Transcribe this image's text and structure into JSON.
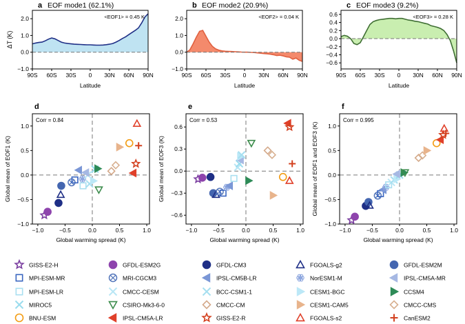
{
  "colors": {
    "eof1_fill": "#bfe3f2",
    "eof1_line": "#1f2f86",
    "eof2_fill": "#f48a6c",
    "eof2_line": "#e0603f",
    "eof3_fill": "#c9eeb0",
    "eof3_line": "#3f6e33",
    "axis": "#000000",
    "dash": "#777777"
  },
  "chart_data": [
    {
      "id": "a",
      "type": "area",
      "panel_label": "a",
      "title": "EOF mode1 (62.1%)",
      "annotation": "<EOF1> = 0.45 K",
      "xlabel": "Latitude",
      "ylabel": "ΔT (K)",
      "xlim": [
        -90,
        90
      ],
      "ylim": [
        -1.0,
        2.5
      ],
      "xticks": [
        -90,
        -60,
        -30,
        0,
        30,
        60,
        90
      ],
      "xticklabels": [
        "90S",
        "60S",
        "30S",
        "0",
        "30N",
        "60N",
        "90N"
      ],
      "yticks": [
        -1.0,
        0.0,
        1.0,
        2.0
      ],
      "yticklabels": [
        "−1.0",
        "0.0",
        "1.0",
        "2.0"
      ],
      "x": [
        -90,
        -85,
        -80,
        -75,
        -70,
        -65,
        -60,
        -55,
        -50,
        -45,
        -40,
        -35,
        -30,
        -25,
        -20,
        -15,
        -10,
        -5,
        0,
        5,
        10,
        15,
        20,
        25,
        30,
        35,
        40,
        45,
        50,
        55,
        60,
        65,
        70,
        75,
        80,
        85,
        90
      ],
      "y": [
        0.5,
        0.55,
        0.58,
        0.6,
        0.68,
        0.78,
        0.85,
        0.8,
        0.7,
        0.6,
        0.55,
        0.52,
        0.5,
        0.48,
        0.47,
        0.46,
        0.45,
        0.44,
        0.44,
        0.43,
        0.42,
        0.42,
        0.43,
        0.45,
        0.48,
        0.52,
        0.6,
        0.7,
        0.82,
        0.92,
        1.05,
        1.18,
        1.3,
        1.45,
        1.75,
        2.1,
        2.3
      ]
    },
    {
      "id": "b",
      "type": "area",
      "panel_label": "b",
      "title": "EOF mode2 (20.9%)",
      "annotation": "<EOF2> = 0.04 K",
      "xlabel": "Latitude",
      "ylabel": "",
      "xlim": [
        -90,
        90
      ],
      "ylim": [
        -1.0,
        2.5
      ],
      "xticks": [
        -90,
        -60,
        -30,
        0,
        30,
        60,
        90
      ],
      "xticklabels": [
        "90S",
        "60S",
        "30S",
        "0",
        "30N",
        "60N",
        "90N"
      ],
      "yticks": [
        -1.0,
        0.0,
        1.0,
        2.0
      ],
      "yticklabels": [
        "−1.0",
        "0.0",
        "1.0",
        "2.0"
      ],
      "x": [
        -90,
        -85,
        -80,
        -75,
        -70,
        -65,
        -60,
        -55,
        -50,
        -45,
        -40,
        -35,
        -30,
        -25,
        -20,
        -15,
        -10,
        -5,
        0,
        5,
        10,
        15,
        20,
        25,
        30,
        35,
        40,
        45,
        50,
        55,
        60,
        65,
        70,
        75,
        80,
        85,
        90
      ],
      "y": [
        0.0,
        0.15,
        0.5,
        0.9,
        1.25,
        1.3,
        0.95,
        0.6,
        0.35,
        0.2,
        0.12,
        0.08,
        0.06,
        0.05,
        0.04,
        0.03,
        0.02,
        0.01,
        0.0,
        0.0,
        -0.01,
        -0.02,
        -0.04,
        -0.06,
        -0.08,
        -0.1,
        -0.12,
        -0.15,
        -0.2,
        -0.18,
        -0.22,
        -0.28,
        -0.3,
        -0.42,
        -0.35,
        -0.48,
        -0.55
      ]
    },
    {
      "id": "c",
      "type": "area",
      "panel_label": "c",
      "title": "EOF mode3 (9.2%)",
      "annotation": "<EOF3> = 0.28 K",
      "xlabel": "Latitude",
      "ylabel": "",
      "xlim": [
        -90,
        90
      ],
      "ylim": [
        -0.75,
        0.7
      ],
      "xticks": [
        -90,
        -60,
        -30,
        0,
        30,
        60,
        90
      ],
      "xticklabels": [
        "90S",
        "60S",
        "30S",
        "0",
        "30N",
        "60N",
        "90N"
      ],
      "yticks": [
        -0.6,
        -0.4,
        -0.2,
        0.0,
        0.2,
        0.4,
        0.6
      ],
      "yticklabels": [
        "−0.6",
        "−0.4",
        "−0.2",
        "0.0",
        "0.2",
        "0.4",
        "0.6"
      ],
      "x": [
        -90,
        -85,
        -80,
        -75,
        -70,
        -65,
        -60,
        -55,
        -50,
        -45,
        -40,
        -35,
        -30,
        -25,
        -20,
        -15,
        -10,
        -5,
        0,
        5,
        10,
        15,
        20,
        25,
        30,
        35,
        40,
        45,
        50,
        55,
        60,
        65,
        70,
        75,
        80,
        85,
        90
      ],
      "y": [
        0.05,
        0.08,
        0.06,
        0.0,
        -0.12,
        -0.15,
        -0.1,
        0.05,
        0.2,
        0.35,
        0.42,
        0.45,
        0.47,
        0.48,
        0.49,
        0.5,
        0.5,
        0.49,
        0.5,
        0.5,
        0.48,
        0.46,
        0.45,
        0.43,
        0.42,
        0.4,
        0.38,
        0.36,
        0.32,
        0.3,
        0.28,
        0.25,
        0.2,
        0.1,
        -0.05,
        -0.3,
        -0.6
      ]
    },
    {
      "id": "d",
      "type": "scatter",
      "panel_label": "d",
      "annotation": "Corr = 0.84",
      "xlabel": "Global warming spread (K)",
      "ylabel": "Global mean of EOF1 (K)",
      "xlim": [
        -1.1,
        1.05
      ],
      "ylim": [
        -1.0,
        1.25
      ],
      "xticks": [
        -1.0,
        -0.5,
        0.0,
        0.5,
        1.0
      ],
      "xticklabels": [
        "−1.0",
        "−0.5",
        "0.0",
        "0.5",
        "1.0"
      ],
      "yticks": [
        -1.0,
        -0.5,
        0.0,
        0.5,
        1.0
      ],
      "yticklabels": [
        "−1.0",
        "−0.5",
        "0.0",
        "0.5",
        "1.0"
      ],
      "points": [
        {
          "model": "GISS-E2-H",
          "x": -0.88,
          "y": -0.82
        },
        {
          "model": "GFDL-ESM2G",
          "x": -0.82,
          "y": -0.75
        },
        {
          "model": "GFDL-CM3",
          "x": -0.62,
          "y": -0.57
        },
        {
          "model": "GFDL-ESM2M",
          "x": -0.57,
          "y": -0.22
        },
        {
          "model": "FGOALS-g2",
          "x": -0.58,
          "y": -0.4
        },
        {
          "model": "MRI-CGCM3",
          "x": -0.38,
          "y": -0.15
        },
        {
          "model": "MPI-ESM-MR",
          "x": -0.32,
          "y": -0.1
        },
        {
          "model": "IPSL-CM5B-LR",
          "x": -0.25,
          "y": 0.1
        },
        {
          "model": "NorESM1-M",
          "x": -0.18,
          "y": -0.08
        },
        {
          "model": "MPI-ESM-LR",
          "x": -0.17,
          "y": -0.22
        },
        {
          "model": "CMCC-CESM",
          "x": -0.08,
          "y": 0.0
        },
        {
          "model": "BCC-CSM1-1",
          "x": -0.05,
          "y": -0.18
        },
        {
          "model": "CESM1-BGC",
          "x": 0.02,
          "y": -0.12
        },
        {
          "model": "MIROC5",
          "x": 0.05,
          "y": 0.12
        },
        {
          "model": "IPSL-CM5A-MR",
          "x": -0.12,
          "y": 0.05
        },
        {
          "model": "CCSM4",
          "x": 0.1,
          "y": 0.13
        },
        {
          "model": "CSIRO-Mk3-6-0",
          "x": 0.12,
          "y": -0.3
        },
        {
          "model": "CMCC-CM",
          "x": 0.35,
          "y": 0.08
        },
        {
          "model": "CMCC-CMS",
          "x": 0.43,
          "y": 0.2
        },
        {
          "model": "CESM1-CAM5",
          "x": 0.5,
          "y": 0.57
        },
        {
          "model": "BNU-ESM",
          "x": 0.68,
          "y": 0.65
        },
        {
          "model": "IPSL-CM5A-LR",
          "x": 0.75,
          "y": 0.04
        },
        {
          "model": "GISS-E2-R",
          "x": 0.8,
          "y": 0.23
        },
        {
          "model": "FGOALS-s2",
          "x": 0.82,
          "y": 1.05
        },
        {
          "model": "CanESM2",
          "x": 0.85,
          "y": 0.6
        }
      ]
    },
    {
      "id": "e",
      "type": "scatter",
      "panel_label": "e",
      "annotation": "Corr = 0.53",
      "xlabel": "Global warming spread (K)",
      "ylabel": "Global mean of EOF3 (K)",
      "xlim": [
        -1.1,
        1.05
      ],
      "ylim": [
        -0.72,
        0.78
      ],
      "xticks": [
        -1.0,
        -0.5,
        0.0,
        0.5,
        1.0
      ],
      "xticklabels": [
        "−1.0",
        "−0.5",
        "0.0",
        "0.5",
        "1.0"
      ],
      "yticks": [
        -0.6,
        -0.3,
        0.0,
        0.3,
        0.6
      ],
      "yticklabels": [
        "−0.6",
        "−0.3",
        "0.0",
        "0.3",
        "0.6"
      ],
      "points": [
        {
          "model": "GISS-E2-H",
          "x": -0.88,
          "y": -0.11
        },
        {
          "model": "GFDL-ESM2G",
          "x": -0.8,
          "y": -0.09
        },
        {
          "model": "GFDL-CM3",
          "x": -0.65,
          "y": -0.08
        },
        {
          "model": "GFDL-ESM2M",
          "x": -0.6,
          "y": -0.3
        },
        {
          "model": "FGOALS-g2",
          "x": -0.55,
          "y": -0.32
        },
        {
          "model": "MRI-CGCM3",
          "x": -0.48,
          "y": -0.28
        },
        {
          "model": "MPI-ESM-MR",
          "x": -0.42,
          "y": -0.3
        },
        {
          "model": "NorESM1-M",
          "x": -0.35,
          "y": -0.22
        },
        {
          "model": "IPSL-CM5B-LR",
          "x": -0.3,
          "y": -0.2
        },
        {
          "model": "MPI-ESM-LR",
          "x": -0.22,
          "y": -0.1
        },
        {
          "model": "CMCC-CESM",
          "x": -0.15,
          "y": 0.05
        },
        {
          "model": "MIROC5",
          "x": -0.12,
          "y": 0.1
        },
        {
          "model": "IPSL-CM5A-MR",
          "x": -0.1,
          "y": 0.15
        },
        {
          "model": "CESM1-BGC",
          "x": -0.1,
          "y": 0.2
        },
        {
          "model": "BCC-CSM1-1",
          "x": -0.08,
          "y": 0.22
        },
        {
          "model": "CCSM4",
          "x": 0.05,
          "y": -0.13
        },
        {
          "model": "CSIRO-Mk3-6-0",
          "x": 0.1,
          "y": 0.38
        },
        {
          "model": "CMCC-CM",
          "x": 0.4,
          "y": 0.28
        },
        {
          "model": "CMCC-CMS",
          "x": 0.48,
          "y": 0.22
        },
        {
          "model": "CESM1-CAM5",
          "x": 0.5,
          "y": -0.33
        },
        {
          "model": "BNU-ESM",
          "x": 0.68,
          "y": -0.08
        },
        {
          "model": "IPSL-CM5A-LR",
          "x": 0.77,
          "y": 0.65
        },
        {
          "model": "GISS-E2-R",
          "x": 0.8,
          "y": 0.6
        },
        {
          "model": "FGOALS-s2",
          "x": 0.8,
          "y": -0.13
        },
        {
          "model": "CanESM2",
          "x": 0.85,
          "y": 0.1
        }
      ]
    },
    {
      "id": "f",
      "type": "scatter",
      "panel_label": "f",
      "annotation": "Corr = 0.995",
      "xlabel": "Global warming spread (K)",
      "ylabel": "Global mean of EOF1 and EOF3 (K)",
      "xlim": [
        -1.1,
        1.05
      ],
      "ylim": [
        -1.0,
        1.25
      ],
      "xticks": [
        -1.0,
        -0.5,
        0.0,
        0.5,
        1.0
      ],
      "xticklabels": [
        "−1.0",
        "−0.5",
        "0.0",
        "0.5",
        "1.0"
      ],
      "yticks": [
        -1.0,
        -0.5,
        0.0,
        0.5,
        1.0
      ],
      "yticklabels": [
        "−1.0",
        "−0.5",
        "0.0",
        "0.5",
        "1.0"
      ],
      "points": [
        {
          "model": "GISS-E2-H",
          "x": -0.88,
          "y": -0.92
        },
        {
          "model": "GFDL-ESM2G",
          "x": -0.82,
          "y": -0.85
        },
        {
          "model": "GFDL-CM3",
          "x": -0.62,
          "y": -0.63
        },
        {
          "model": "GFDL-ESM2M",
          "x": -0.57,
          "y": -0.55
        },
        {
          "model": "FGOALS-g2",
          "x": -0.55,
          "y": -0.62
        },
        {
          "model": "MRI-CGCM3",
          "x": -0.4,
          "y": -0.42
        },
        {
          "model": "MPI-ESM-MR",
          "x": -0.35,
          "y": -0.38
        },
        {
          "model": "IPSL-CM5B-LR",
          "x": -0.3,
          "y": -0.3
        },
        {
          "model": "NorESM1-M",
          "x": -0.25,
          "y": -0.25
        },
        {
          "model": "MPI-ESM-LR",
          "x": -0.2,
          "y": -0.2
        },
        {
          "model": "CMCC-CESM",
          "x": -0.15,
          "y": -0.15
        },
        {
          "model": "BCC-CSM1-1",
          "x": -0.1,
          "y": -0.1
        },
        {
          "model": "CESM1-BGC",
          "x": -0.05,
          "y": -0.08
        },
        {
          "model": "MIROC5",
          "x": 0.0,
          "y": 0.0
        },
        {
          "model": "IPSL-CM5A-MR",
          "x": -0.05,
          "y": 0.02
        },
        {
          "model": "CCSM4",
          "x": 0.08,
          "y": 0.05
        },
        {
          "model": "CSIRO-Mk3-6-0",
          "x": 0.1,
          "y": 0.05
        },
        {
          "model": "CMCC-CM",
          "x": 0.35,
          "y": 0.35
        },
        {
          "model": "CMCC-CMS",
          "x": 0.42,
          "y": 0.4
        },
        {
          "model": "CESM1-CAM5",
          "x": 0.5,
          "y": 0.5
        },
        {
          "model": "BNU-ESM",
          "x": 0.68,
          "y": 0.65
        },
        {
          "model": "IPSL-CM5A-LR",
          "x": 0.75,
          "y": 0.72
        },
        {
          "model": "GISS-E2-R",
          "x": 0.8,
          "y": 0.82
        },
        {
          "model": "FGOALS-s2",
          "x": 0.82,
          "y": 0.95
        },
        {
          "model": "CanESM2",
          "x": 0.85,
          "y": 0.85
        }
      ]
    }
  ],
  "legend": [
    {
      "name": "GISS-E2-H",
      "marker": "star",
      "color": "#7b3fa0",
      "filled": false
    },
    {
      "name": "GFDL-ESM2G",
      "marker": "circle",
      "color": "#8e44ad",
      "filled": true
    },
    {
      "name": "GFDL-CM3",
      "marker": "circle",
      "color": "#1f2f86",
      "filled": true
    },
    {
      "name": "FGOALS-g2",
      "marker": "triangle-up",
      "color": "#1f2f86",
      "filled": false
    },
    {
      "name": "GFDL-ESM2M",
      "marker": "circle",
      "color": "#4466b0",
      "filled": true
    },
    {
      "name": "MPI-ESM-MR",
      "marker": "square",
      "color": "#3a66c0",
      "filled": false
    },
    {
      "name": "MRI-CGCM3",
      "marker": "circle-x",
      "color": "#5577bb",
      "filled": false
    },
    {
      "name": "IPSL-CM5B-LR",
      "marker": "triangle-left",
      "color": "#7b97d6",
      "filled": true
    },
    {
      "name": "NorESM1-M",
      "marker": "flower",
      "color": "#8aa4de",
      "filled": false
    },
    {
      "name": "IPSL-CM5A-MR",
      "marker": "triangle-left",
      "color": "#a6b8e3",
      "filled": true
    },
    {
      "name": "MPI-ESM-LR",
      "marker": "square",
      "color": "#a9dff0",
      "filled": false
    },
    {
      "name": "CMCC-CESM",
      "marker": "x",
      "color": "#b9e6f5",
      "filled": false
    },
    {
      "name": "BCC-CSM1-1",
      "marker": "x",
      "color": "#a6dff0",
      "filled": false
    },
    {
      "name": "CESM1-BGC",
      "marker": "triangle-right",
      "color": "#bce8f7",
      "filled": true
    },
    {
      "name": "CCSM4",
      "marker": "triangle-right",
      "color": "#2e8b57",
      "filled": true
    },
    {
      "name": "MIROC5",
      "marker": "x",
      "color": "#9adcee",
      "filled": false
    },
    {
      "name": "CSIRO-Mk3-6-0",
      "marker": "triangle-down",
      "color": "#3c8c4c",
      "filled": false
    },
    {
      "name": "CMCC-CM",
      "marker": "diamond",
      "color": "#d4a98a",
      "filled": false
    },
    {
      "name": "CESM1-CAM5",
      "marker": "triangle-right",
      "color": "#e8b48c",
      "filled": true
    },
    {
      "name": "CMCC-CMS",
      "marker": "diamond",
      "color": "#d8b090",
      "filled": false
    },
    {
      "name": "BNU-ESM",
      "marker": "circle",
      "color": "#f39c12",
      "filled": false
    },
    {
      "name": "IPSL-CM5A-LR",
      "marker": "triangle-left",
      "color": "#e0402a",
      "filled": true
    },
    {
      "name": "GISS-E2-R",
      "marker": "star",
      "color": "#d3401f",
      "filled": false
    },
    {
      "name": "FGOALS-s2",
      "marker": "triangle-up",
      "color": "#e0402a",
      "filled": false
    },
    {
      "name": "CanESM2",
      "marker": "plus",
      "color": "#d3401f",
      "filled": false
    }
  ]
}
